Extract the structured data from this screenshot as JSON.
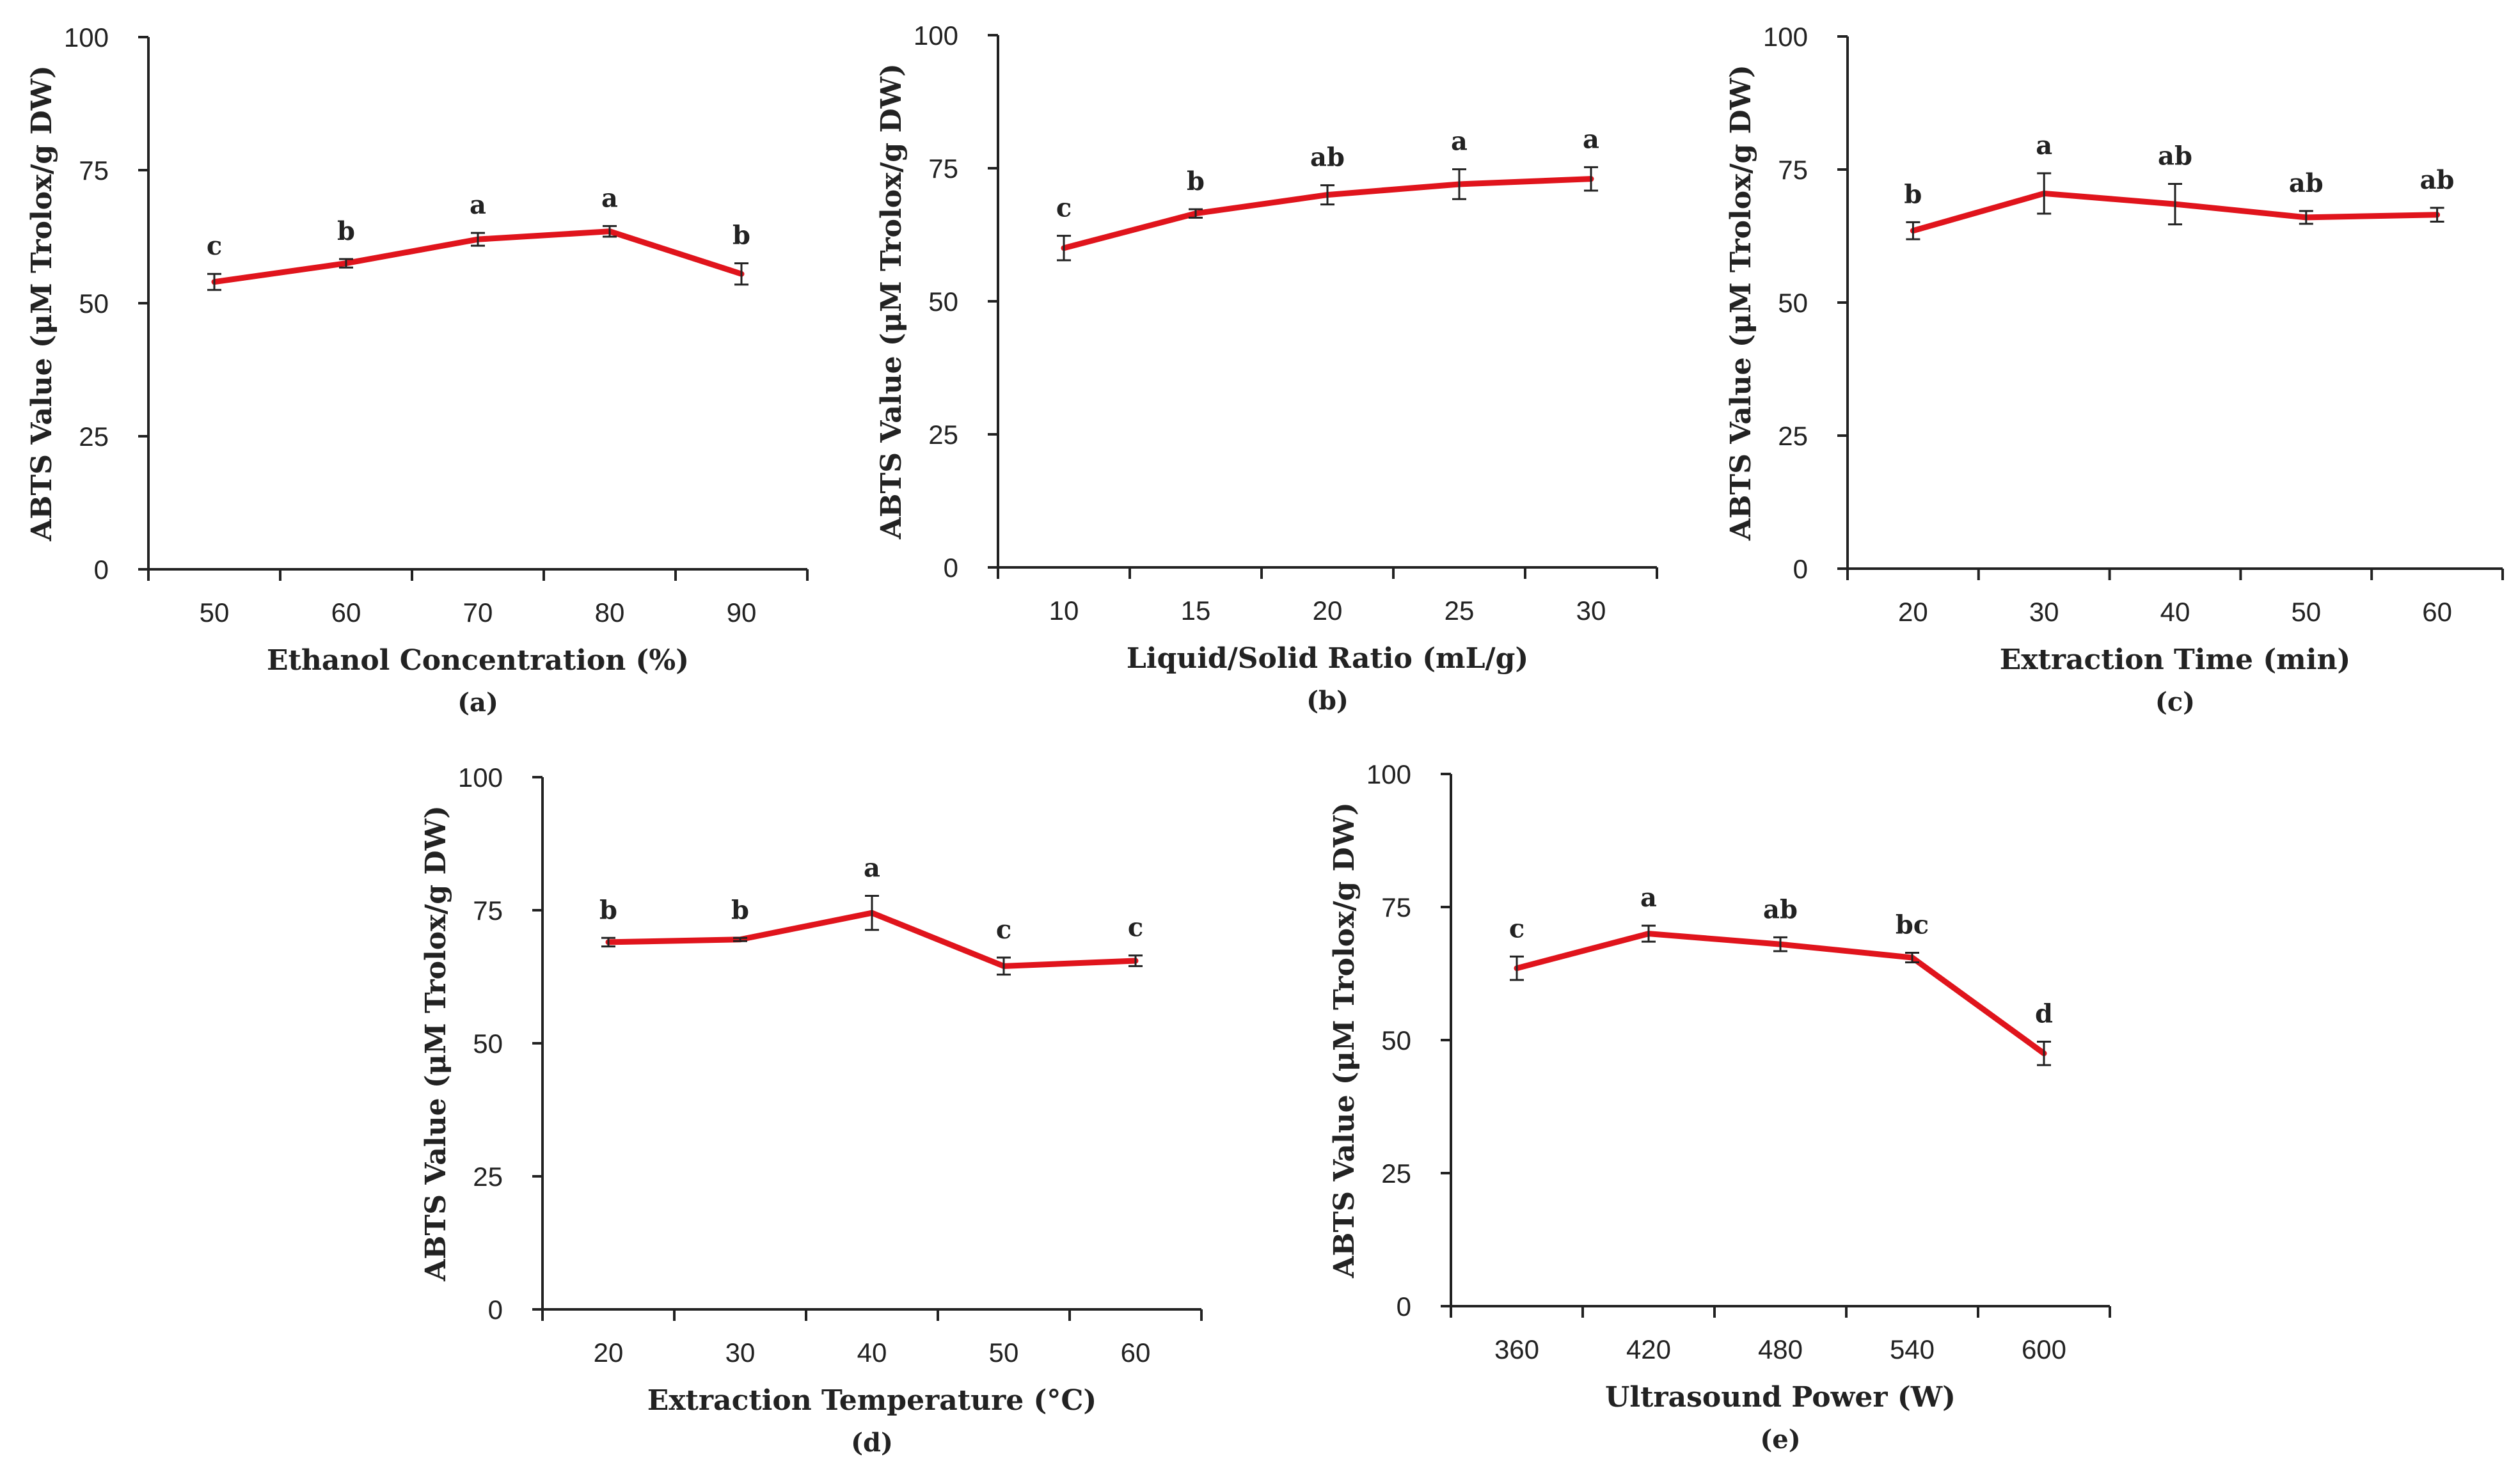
{
  "figure": {
    "line_color": "#e0141c",
    "axis_color": "#222222"
  },
  "chart_data": [
    {
      "type": "line",
      "caption": "(a)",
      "xlabel": "Ethanol Concentration (%)",
      "ylabel": "ABTS Value (μM Trolox/g DW)",
      "categories": [
        "50",
        "60",
        "70",
        "80",
        "90"
      ],
      "values": [
        54,
        57.5,
        62,
        63.5,
        55.5
      ],
      "errors": [
        1.5,
        0.8,
        1.2,
        1.0,
        2.0
      ],
      "significance": [
        "c",
        "b",
        "a",
        "a",
        "b"
      ],
      "yticks": [
        "0",
        "25",
        "50",
        "75",
        "100"
      ],
      "ylim": [
        0,
        100
      ]
    },
    {
      "type": "line",
      "caption": "(b)",
      "xlabel": "Liquid/Solid Ratio (mL/g)",
      "ylabel": "ABTS Value (μM Trolox/g DW)",
      "categories": [
        "10",
        "15",
        "20",
        "25",
        "30"
      ],
      "values": [
        60,
        66.5,
        70,
        72,
        73
      ],
      "errors": [
        2.3,
        0.8,
        1.8,
        2.8,
        2.2
      ],
      "significance": [
        "c",
        "b",
        "ab",
        "a",
        "a"
      ],
      "yticks": [
        "0",
        "25",
        "50",
        "75",
        "100"
      ],
      "ylim": [
        0,
        100
      ]
    },
    {
      "type": "line",
      "caption": "(c)",
      "xlabel": "Extraction Time (min)",
      "ylabel": "ABTS Value (μM Trolox/g DW)",
      "categories": [
        "20",
        "30",
        "40",
        "50",
        "60"
      ],
      "values": [
        63.5,
        70.5,
        68.5,
        66,
        66.5
      ],
      "errors": [
        1.6,
        3.8,
        3.8,
        1.2,
        1.3
      ],
      "significance": [
        "b",
        "a",
        "ab",
        "ab",
        "ab"
      ],
      "yticks": [
        "0",
        "25",
        "50",
        "75",
        "100"
      ],
      "ylim": [
        0,
        100
      ]
    },
    {
      "type": "line",
      "caption": "(d)",
      "xlabel": "Extraction Temperature (°C)",
      "ylabel": "ABTS Value (μM Trolox/g DW)",
      "categories": [
        "20",
        "30",
        "40",
        "50",
        "60"
      ],
      "values": [
        69,
        69.5,
        74.5,
        64.5,
        65.5
      ],
      "errors": [
        0.8,
        0.3,
        3.2,
        1.6,
        1.0
      ],
      "significance": [
        "b",
        "b",
        "a",
        "c",
        "c"
      ],
      "yticks": [
        "0",
        "25",
        "50",
        "75",
        "100"
      ],
      "ylim": [
        0,
        100
      ]
    },
    {
      "type": "line",
      "caption": "(e)",
      "xlabel": "Ultrasound Power (W)",
      "ylabel": "ABTS Value (μM Trolox/g DW)",
      "categories": [
        "360",
        "420",
        "480",
        "540",
        "600"
      ],
      "values": [
        63.5,
        70,
        68,
        65.5,
        47.5
      ],
      "errors": [
        2.2,
        1.5,
        1.3,
        0.9,
        2.2
      ],
      "significance": [
        "c",
        "a",
        "ab",
        "bc",
        "d"
      ],
      "yticks": [
        "0",
        "25",
        "50",
        "75",
        "100"
      ],
      "ylim": [
        0,
        100
      ]
    }
  ]
}
